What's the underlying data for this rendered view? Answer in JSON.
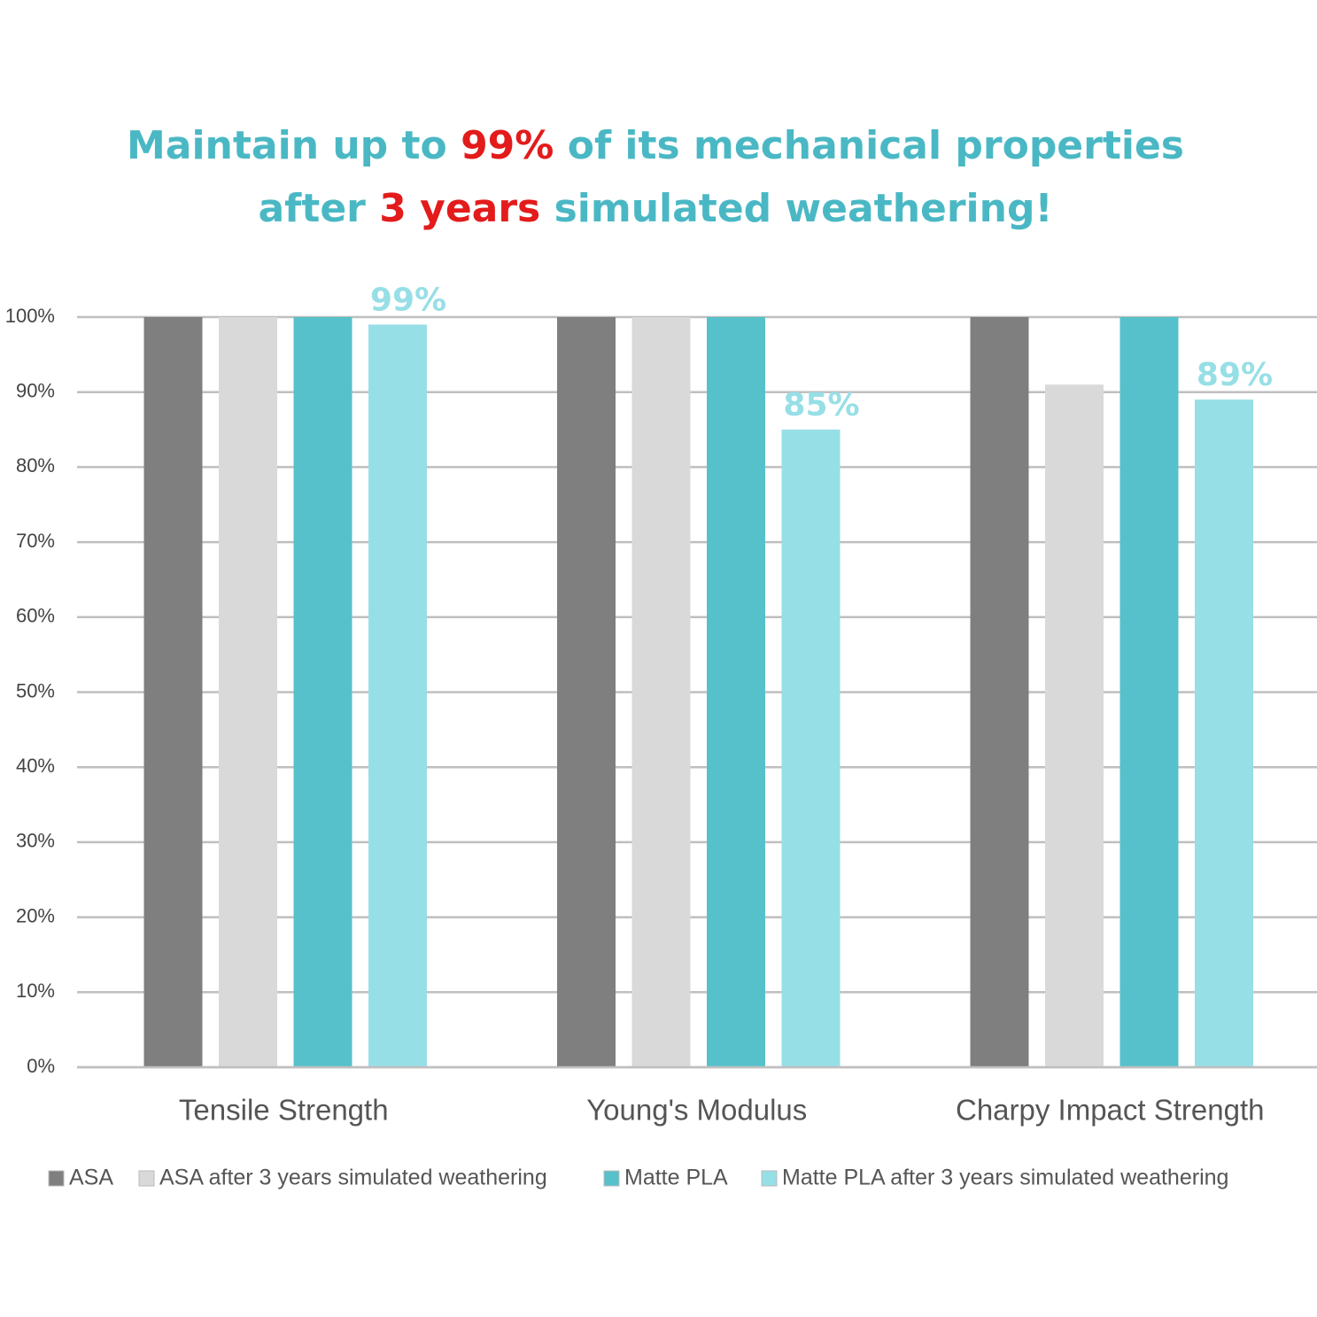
{
  "chart_data": {
    "type": "bar",
    "title": [
      {
        "text": "Maintain up to ",
        "color": "#4ab8c4"
      },
      {
        "text": "99%",
        "color": "#e31b1b"
      },
      {
        "text": " of its mechanical properties",
        "color": "#4ab8c4"
      }
    ],
    "subtitle": [
      {
        "text": "after ",
        "color": "#4ab8c4"
      },
      {
        "text": "3 years",
        "color": "#e31b1b"
      },
      {
        "text": " simulated weathering!",
        "color": "#4ab8c4"
      }
    ],
    "categories": [
      "Tensile Strength",
      "Young's Modulus",
      "Charpy Impact Strength"
    ],
    "series": [
      {
        "name": "ASA",
        "color": "#7f7f7f",
        "values": [
          100,
          100,
          100
        ]
      },
      {
        "name": "ASA after 3 years simulated weathering",
        "color": "#d9d9d9",
        "values": [
          100,
          100,
          91
        ]
      },
      {
        "name": "Matte PLA",
        "color": "#56c1cb",
        "values": [
          100,
          100,
          100
        ]
      },
      {
        "name": "Matte PLA after 3 years simulated weathering",
        "color": "#97dfe6",
        "values": [
          99,
          85,
          89
        ],
        "value_labels": [
          "99%",
          "85%",
          "89%"
        ]
      }
    ],
    "ylim": [
      0,
      100
    ],
    "yticks": [
      {
        "value": 0,
        "label": "0%"
      },
      {
        "value": 10,
        "label": "10%"
      },
      {
        "value": 20,
        "label": "20%"
      },
      {
        "value": 30,
        "label": "30%"
      },
      {
        "value": 40,
        "label": "40%"
      },
      {
        "value": 50,
        "label": "50%"
      },
      {
        "value": 60,
        "label": "60%"
      },
      {
        "value": 70,
        "label": "70%"
      },
      {
        "value": 80,
        "label": "80%"
      },
      {
        "value": 90,
        "label": "90%"
      },
      {
        "value": 100,
        "label": "100%"
      }
    ],
    "grid": true,
    "legend": "bottom"
  }
}
